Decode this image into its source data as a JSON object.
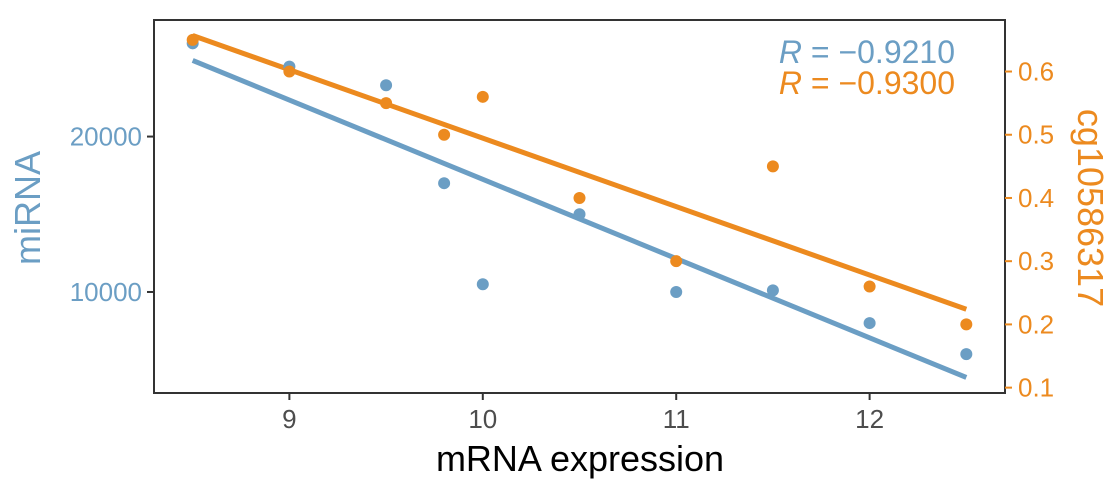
{
  "chart_data": {
    "type": "scatter",
    "xlabel": "mRNA expression",
    "ylabel_left": "miRNA",
    "ylabel_right": "cg10586317",
    "xlim": [
      8.3,
      12.7
    ],
    "ylim_left": [
      3500,
      27500
    ],
    "ylim_right": [
      0.0915,
      0.6815
    ],
    "x_ticks": [
      9,
      10,
      11,
      12
    ],
    "x_tick_labels": [
      "9",
      "10",
      "11",
      "12"
    ],
    "y_left_ticks": [
      10000,
      20000
    ],
    "y_left_tick_labels": [
      "10000",
      "20000"
    ],
    "y_right_ticks": [
      0.1,
      0.2,
      0.3,
      0.4,
      0.5,
      0.6
    ],
    "y_right_tick_labels": [
      "0.1",
      "0.2",
      "0.3",
      "0.4",
      "0.5",
      "0.6"
    ],
    "grid": false,
    "series": [
      {
        "name": "miRNA",
        "axis": "left",
        "color": "#6b9ec4",
        "x": [
          8.5,
          9,
          9.5,
          9.8,
          10,
          10.5,
          11,
          11.5,
          12,
          12.5
        ],
        "y": [
          26000,
          24500,
          23300,
          17000,
          10500,
          15000,
          10000,
          10100,
          8000,
          6000
        ],
        "fit": {
          "x": [
            8.5,
            12.5
          ],
          "y": [
            24900,
            4500
          ]
        },
        "annotation": {
          "prefix": "R",
          "text": " = −0.9210"
        }
      },
      {
        "name": "cg10586317",
        "axis": "right",
        "color": "#ec8a1f",
        "x": [
          8.5,
          9,
          9.5,
          9.8,
          10,
          10.5,
          11,
          11.5,
          12,
          12.5
        ],
        "y": [
          0.65,
          0.6,
          0.55,
          0.5,
          0.56,
          0.4,
          0.3,
          0.45,
          0.26,
          0.2
        ],
        "fit": {
          "x": [
            8.5,
            12.5
          ],
          "y": [
            0.657,
            0.224
          ]
        },
        "annotation": {
          "prefix": "R",
          "text": " = −0.9300"
        }
      }
    ]
  }
}
